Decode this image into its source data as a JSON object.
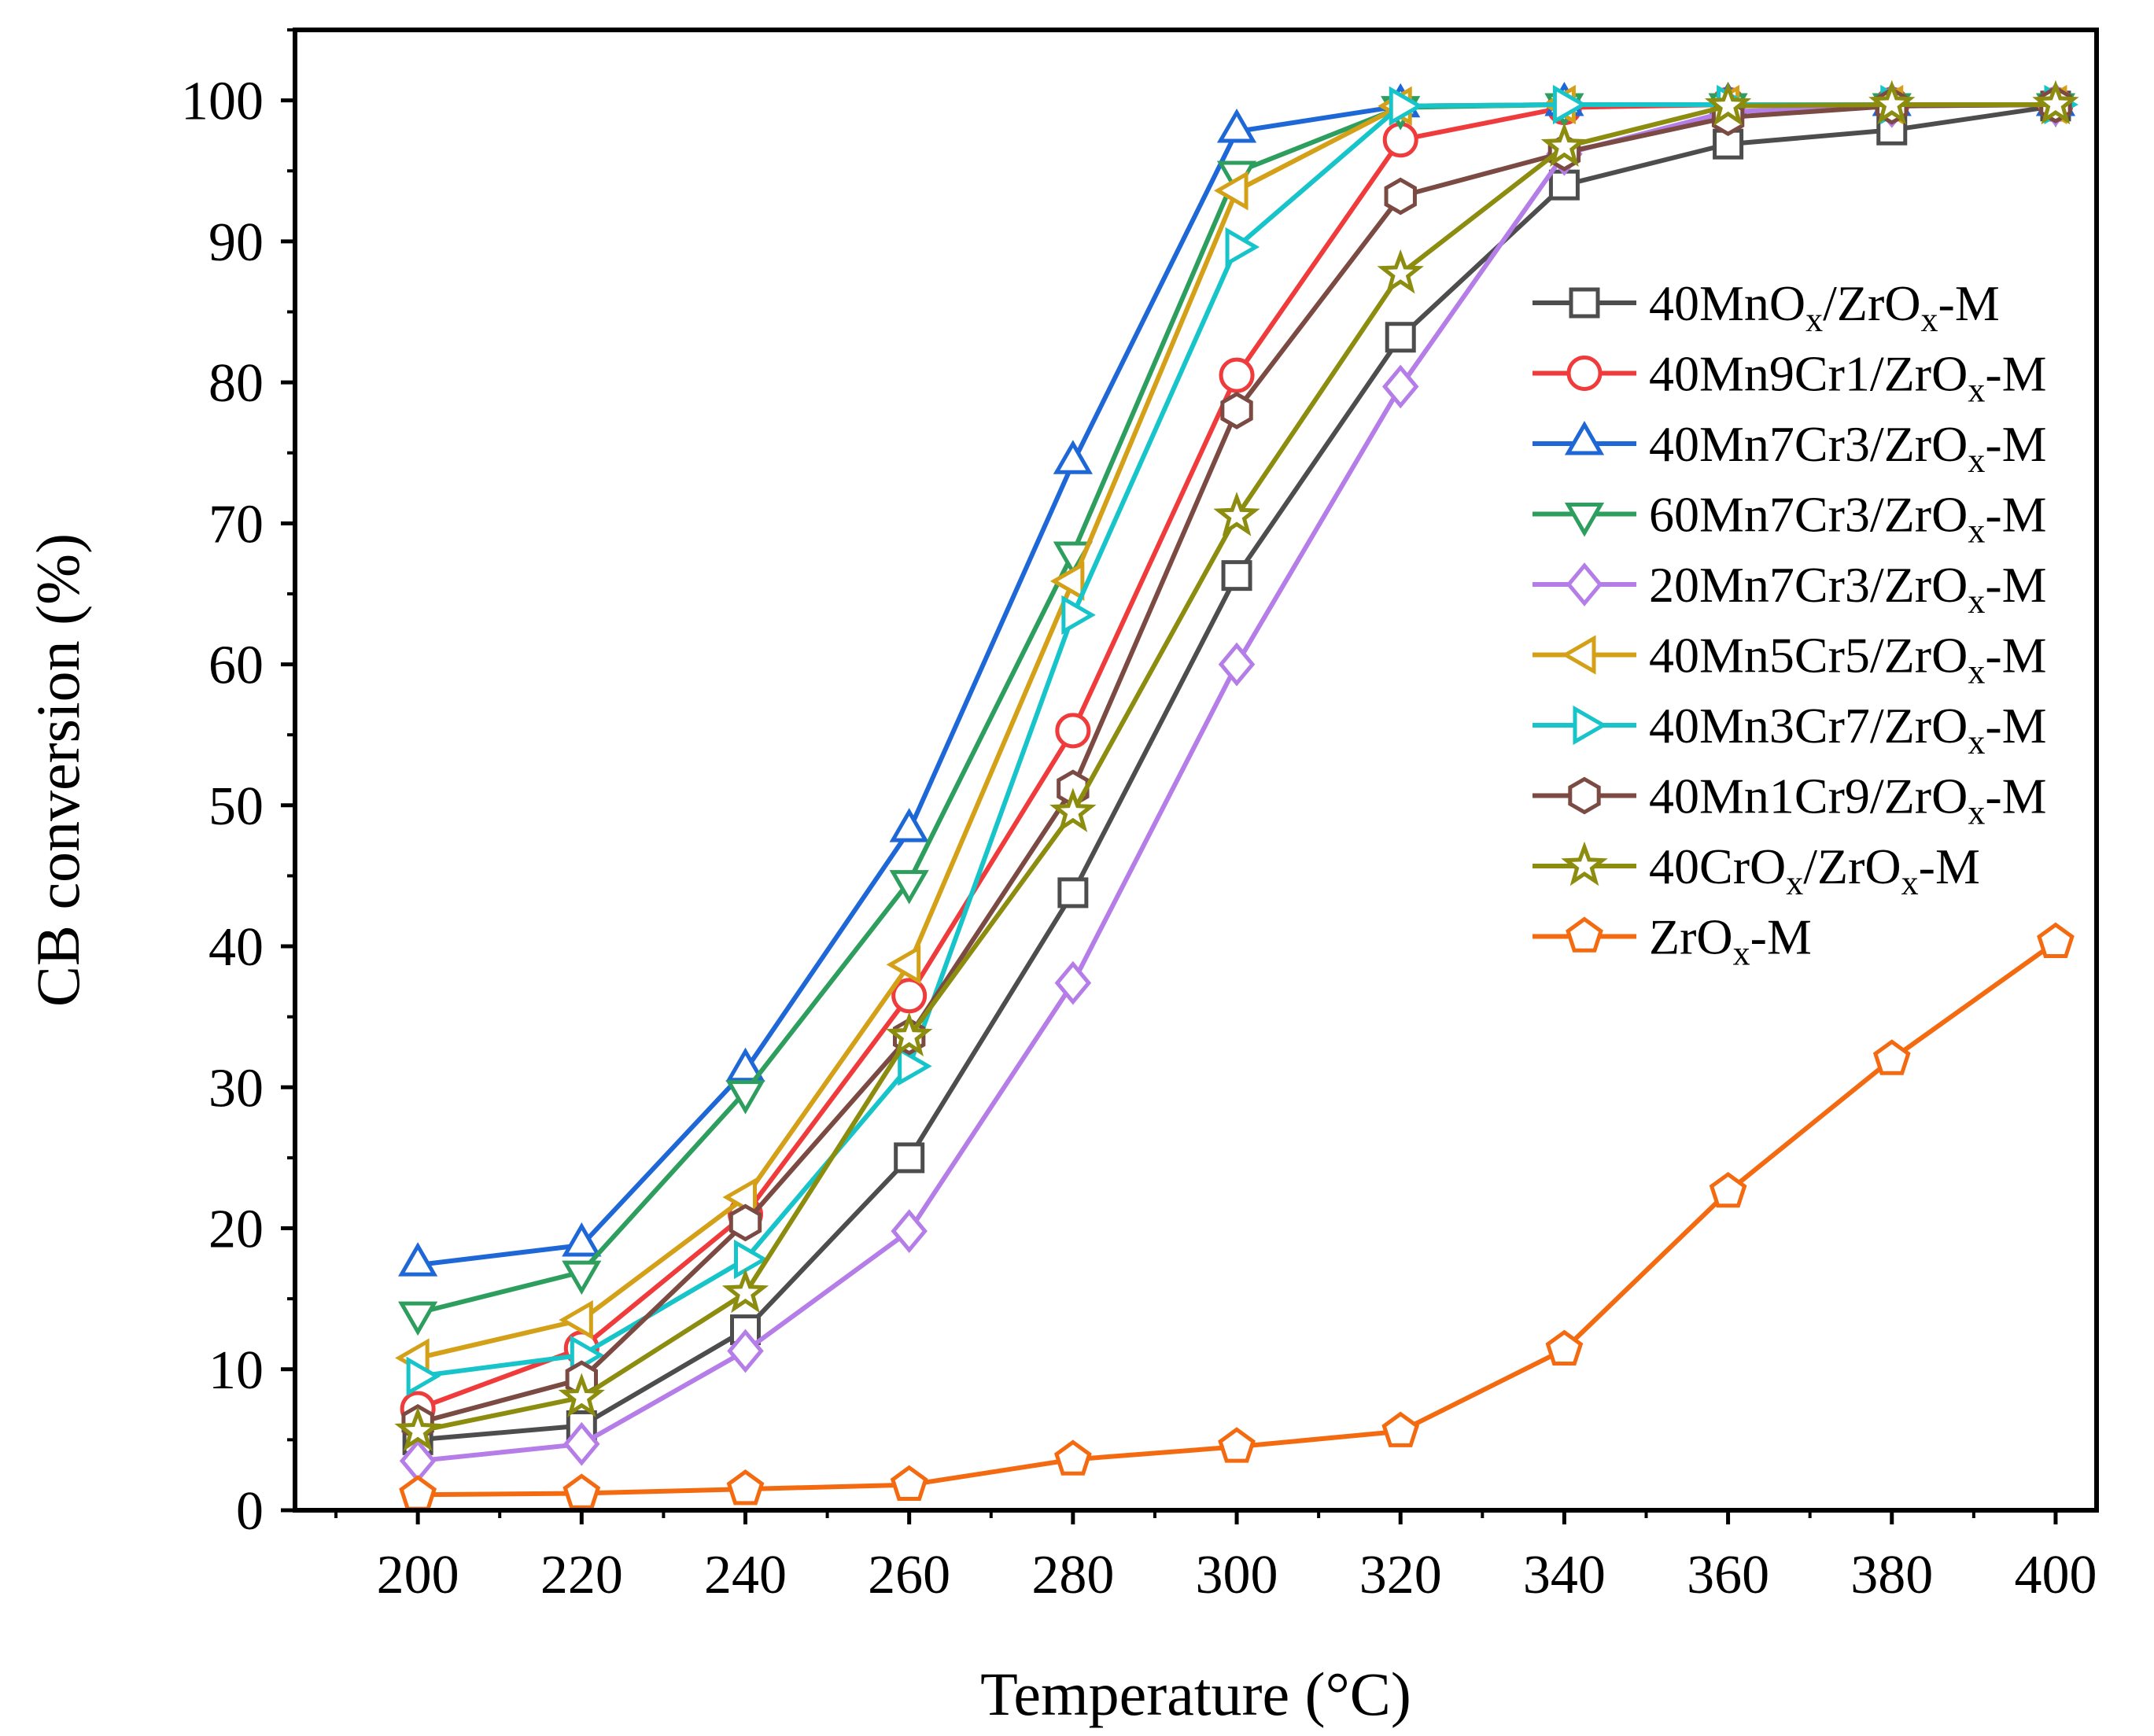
{
  "chart_data": {
    "type": "line",
    "title": "",
    "xlabel": "Temperature (°C)",
    "ylabel": "CB conversion (%)",
    "xlim": [
      185,
      405
    ],
    "ylim": [
      0,
      105
    ],
    "x": [
      200,
      220,
      240,
      260,
      280,
      300,
      320,
      340,
      360,
      380,
      400
    ],
    "x_tick_labels": [
      "200",
      "220",
      "240",
      "260",
      "280",
      "300",
      "320",
      "340",
      "360",
      "380",
      "400"
    ],
    "y_ticks": [
      0,
      10,
      20,
      30,
      40,
      50,
      60,
      70,
      80,
      90,
      100
    ],
    "y_tick_labels": [
      "0",
      "10",
      "20",
      "30",
      "40",
      "50",
      "60",
      "70",
      "80",
      "90",
      "100"
    ],
    "legend_position": "right",
    "series": [
      {
        "name": "40MnOx/ZrOx-M",
        "label_parts": [
          [
            "40MnO",
            ""
          ],
          [
            "x",
            "sub"
          ],
          [
            "/ZrO",
            ""
          ],
          [
            "x",
            "sub"
          ],
          [
            "-M",
            ""
          ]
        ],
        "color": "#4d4d4d",
        "marker": "square",
        "values": [
          5.0,
          6.0,
          12.8,
          25.0,
          43.8,
          66.3,
          83.2,
          94.0,
          96.9,
          97.9,
          99.6
        ]
      },
      {
        "name": "40Mn9Cr1/ZrOx-M",
        "label_parts": [
          [
            "40Mn9Cr1/ZrO",
            ""
          ],
          [
            "x",
            "sub"
          ],
          [
            "-M",
            ""
          ]
        ],
        "color": "#ef3b3b",
        "marker": "circle",
        "values": [
          7.2,
          11.5,
          21.0,
          36.5,
          55.3,
          80.5,
          97.2,
          99.5,
          99.7,
          99.7,
          99.7
        ]
      },
      {
        "name": "40Mn7Cr3/ZrOx-M",
        "label_parts": [
          [
            "40Mn7Cr3/ZrO",
            ""
          ],
          [
            "x",
            "sub"
          ],
          [
            "-M",
            ""
          ]
        ],
        "color": "#1e67d6",
        "marker": "triangle-up",
        "values": [
          17.4,
          18.8,
          31.2,
          48.2,
          74.3,
          97.8,
          99.6,
          99.7,
          99.7,
          99.7,
          99.7
        ]
      },
      {
        "name": "60Mn7Cr3/ZrOx-M",
        "label_parts": [
          [
            "60Mn7Cr3/ZrO",
            ""
          ],
          [
            "x",
            "sub"
          ],
          [
            "-M",
            ""
          ]
        ],
        "color": "#2e9e5e",
        "marker": "triangle-down",
        "values": [
          14.0,
          16.9,
          29.7,
          44.6,
          67.9,
          94.9,
          99.5,
          99.7,
          99.7,
          99.7,
          99.7
        ]
      },
      {
        "name": "20Mn7Cr3/ZrOx-M",
        "label_parts": [
          [
            "20Mn7Cr3/ZrO",
            ""
          ],
          [
            "x",
            "sub"
          ],
          [
            "-M",
            ""
          ]
        ],
        "color": "#b57de8",
        "marker": "diamond",
        "values": [
          3.5,
          4.7,
          11.3,
          19.8,
          37.4,
          60.0,
          79.7,
          96.2,
          99.2,
          99.6,
          99.7
        ]
      },
      {
        "name": "40Mn5Cr5/ZrOx-M",
        "label_parts": [
          [
            "40Mn5Cr5/ZrO",
            ""
          ],
          [
            "x",
            "sub"
          ],
          [
            "-M",
            ""
          ]
        ],
        "color": "#d4a017",
        "marker": "triangle-left",
        "values": [
          10.8,
          13.5,
          22.2,
          38.7,
          65.9,
          93.6,
          99.6,
          99.7,
          99.7,
          99.7,
          99.7
        ]
      },
      {
        "name": "40Mn3Cr7/ZrOx-M",
        "label_parts": [
          [
            "40Mn3Cr7/ZrO",
            ""
          ],
          [
            "x",
            "sub"
          ],
          [
            "-M",
            ""
          ]
        ],
        "color": "#17c4c9",
        "marker": "triangle-right",
        "values": [
          9.5,
          11.0,
          17.8,
          31.5,
          63.5,
          89.6,
          99.6,
          99.7,
          99.7,
          99.7,
          99.7
        ]
      },
      {
        "name": "40Mn1Cr9/ZrOx-M",
        "label_parts": [
          [
            "40Mn1Cr9/ZrO",
            ""
          ],
          [
            "x",
            "sub"
          ],
          [
            "-M",
            ""
          ]
        ],
        "color": "#7b4a42",
        "marker": "hexagon",
        "values": [
          6.2,
          9.3,
          20.4,
          33.6,
          51.2,
          78.0,
          93.2,
          96.3,
          98.8,
          99.6,
          99.7
        ]
      },
      {
        "name": "40CrOx/ZrOx-M",
        "label_parts": [
          [
            "40CrO",
            ""
          ],
          [
            "x",
            "sub"
          ],
          [
            "/ZrO",
            ""
          ],
          [
            "x",
            "sub"
          ],
          [
            "-M",
            ""
          ]
        ],
        "color": "#8c8c0f",
        "marker": "star",
        "values": [
          5.6,
          8.0,
          15.4,
          33.6,
          49.5,
          70.5,
          87.7,
          96.7,
          99.6,
          99.7,
          99.7
        ]
      },
      {
        "name": "ZrOx-M",
        "label_parts": [
          [
            "ZrO",
            ""
          ],
          [
            "x",
            "sub"
          ],
          [
            "-M",
            ""
          ]
        ],
        "color": "#f36a10",
        "marker": "pentagon",
        "values": [
          1.1,
          1.2,
          1.5,
          1.8,
          3.6,
          4.5,
          5.6,
          11.4,
          22.6,
          32.0,
          40.3
        ]
      }
    ]
  }
}
